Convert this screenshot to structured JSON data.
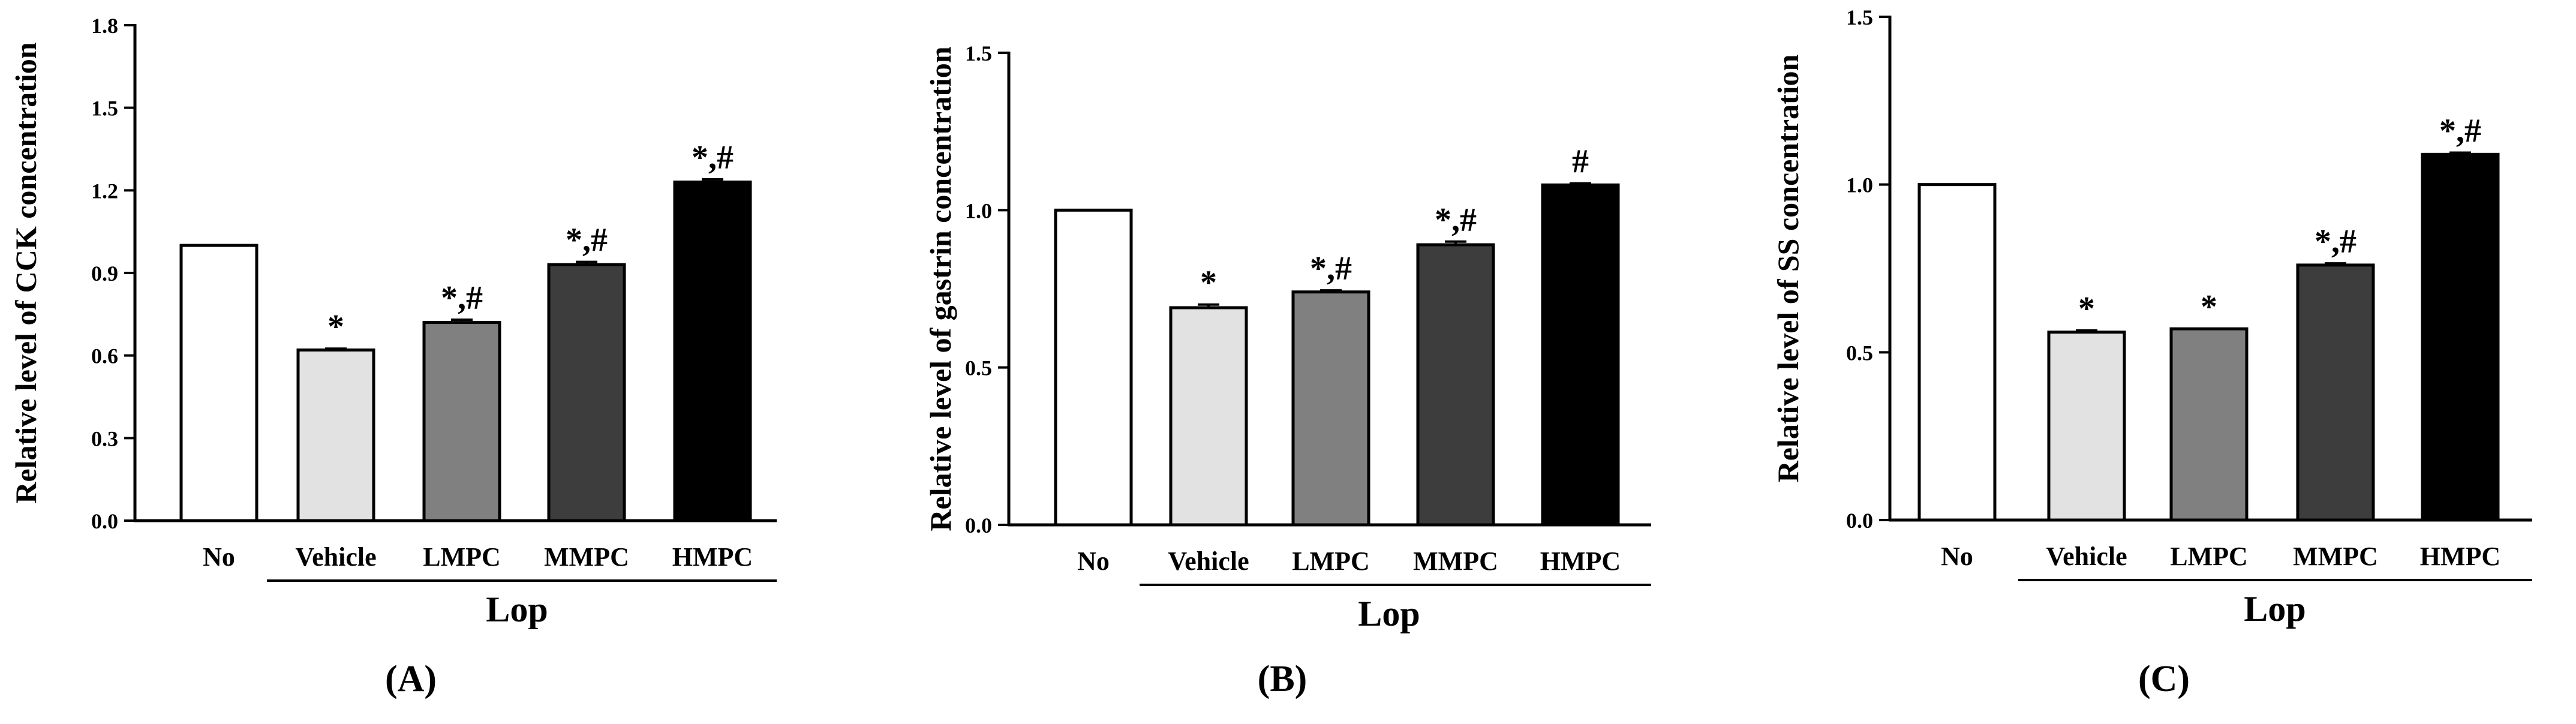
{
  "chart_data": [
    {
      "type": "bar",
      "panel_label": "(A)",
      "ylabel": "Relative level of CCK concentration",
      "ylim": [
        0,
        1.8
      ],
      "yticks": [
        "0.0",
        "0.3",
        "0.6",
        "0.9",
        "1.2",
        "1.5",
        "1.8"
      ],
      "categories": [
        "No",
        "Vehicle",
        "LMPC",
        "MMPC",
        "HMPC"
      ],
      "values": [
        1.0,
        0.62,
        0.72,
        0.93,
        1.23
      ],
      "errors": [
        0.0,
        0.005,
        0.01,
        0.01,
        0.01
      ],
      "colors": [
        "#ffffff",
        "#e2e2e2",
        "#808080",
        "#3d3d3d",
        "#000000"
      ],
      "significance": [
        "",
        "*",
        "*,#",
        "*,#",
        "*,#"
      ],
      "group_label": "Lop"
    },
    {
      "type": "bar",
      "panel_label": "(B)",
      "ylabel": "Relative level of gastrin concentration",
      "ylim": [
        0,
        1.5
      ],
      "yticks": [
        "0.0",
        "0.5",
        "1.0",
        "1.5"
      ],
      "categories": [
        "No",
        "Vehicle",
        "LMPC",
        "MMPC",
        "HMPC"
      ],
      "values": [
        1.0,
        0.69,
        0.74,
        0.89,
        1.08
      ],
      "errors": [
        0.0,
        0.01,
        0.005,
        0.01,
        0.005
      ],
      "colors": [
        "#ffffff",
        "#e2e2e2",
        "#808080",
        "#3d3d3d",
        "#000000"
      ],
      "significance": [
        "",
        "*",
        "*,#",
        "*,#",
        "#"
      ],
      "group_label": "Lop"
    },
    {
      "type": "bar",
      "panel_label": "(C)",
      "ylabel": "Relative level of SS concentration",
      "ylim": [
        0,
        1.5
      ],
      "yticks": [
        "0.0",
        "0.5",
        "1.0",
        "1.5"
      ],
      "categories": [
        "No",
        "Vehicle",
        "LMPC",
        "MMPC",
        "HMPC"
      ],
      "values": [
        1.0,
        0.56,
        0.57,
        0.76,
        1.09
      ],
      "errors": [
        0.0,
        0.005,
        0.0,
        0.005,
        0.005
      ],
      "colors": [
        "#ffffff",
        "#e2e2e2",
        "#808080",
        "#3d3d3d",
        "#000000"
      ],
      "significance": [
        "",
        "*",
        "*",
        "*,#",
        "*,#"
      ],
      "group_label": "Lop"
    }
  ]
}
